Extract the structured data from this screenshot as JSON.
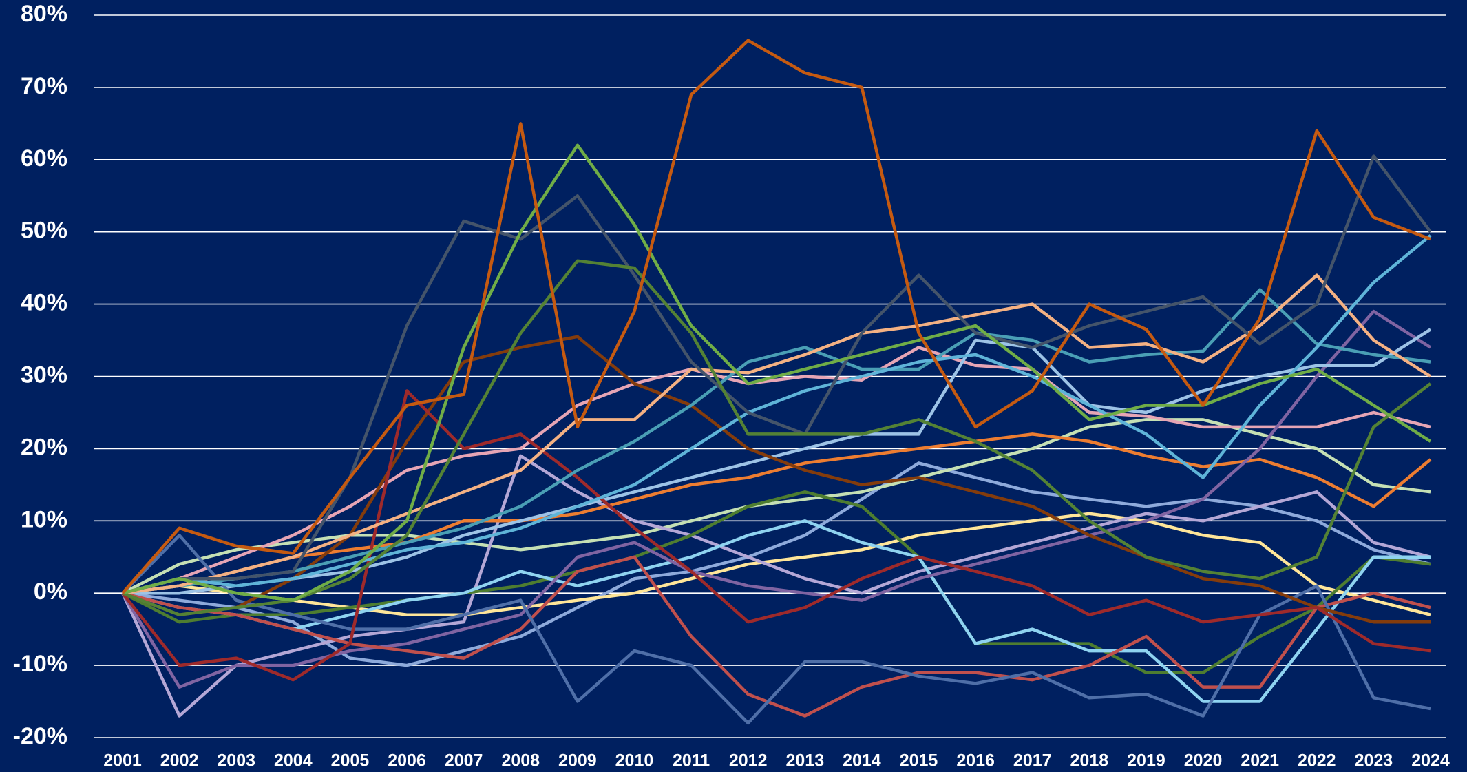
{
  "chart_data": {
    "type": "line",
    "categories": [
      "2001",
      "2002",
      "2003",
      "2004",
      "2005",
      "2006",
      "2007",
      "2008",
      "2009",
      "2010",
      "2011",
      "2012",
      "2013",
      "2014",
      "2015",
      "2016",
      "2017",
      "2018",
      "2019",
      "2020",
      "2021",
      "2022",
      "2023",
      "2024"
    ],
    "ylim": [
      -20,
      80
    ],
    "yticks": [
      {
        "value": -20,
        "label": "-20%"
      },
      {
        "value": -10,
        "label": "-10%"
      },
      {
        "value": 0,
        "label": "0%"
      },
      {
        "value": 10,
        "label": "10%"
      },
      {
        "value": 20,
        "label": "20%"
      },
      {
        "value": 30,
        "label": "30%"
      },
      {
        "value": 40,
        "label": "40%"
      },
      {
        "value": 50,
        "label": "50%"
      },
      {
        "value": 60,
        "label": "60%"
      },
      {
        "value": 70,
        "label": "70%"
      },
      {
        "value": 80,
        "label": "80%"
      }
    ],
    "grid": true,
    "series": [
      {
        "color": "#8eaadb",
        "values": [
          0,
          -1,
          -2,
          -4,
          -9,
          -10,
          -8,
          -6,
          -2,
          2,
          3,
          5,
          8,
          13,
          18,
          16,
          14,
          13,
          12,
          13,
          12,
          10,
          6,
          4
        ]
      },
      {
        "color": "#ffe699",
        "values": [
          0,
          1,
          0,
          -1,
          -2,
          -3,
          -3,
          -2,
          -1,
          0,
          2,
          4,
          5,
          6,
          8,
          9,
          10,
          11,
          10,
          8,
          7,
          1,
          -1,
          -3
        ]
      },
      {
        "color": "#c5e0b4",
        "values": [
          0,
          4,
          6,
          7,
          8,
          8,
          7,
          6,
          7,
          8,
          10,
          12,
          13,
          14,
          16,
          18,
          20,
          23,
          24,
          24,
          22,
          20,
          15,
          14
        ]
      },
      {
        "color": "#b4a7d6",
        "values": [
          0,
          -17,
          -10,
          -8,
          -6,
          -5,
          -4,
          19,
          14,
          10,
          8,
          5,
          2,
          0,
          3,
          5,
          7,
          9,
          11,
          10,
          12,
          14,
          7,
          5
        ]
      },
      {
        "color": "#ed7d31",
        "values": [
          0,
          1,
          3,
          5,
          6,
          7,
          10,
          10,
          11,
          13,
          15,
          16,
          18,
          19,
          20,
          21,
          22,
          21,
          19,
          17.5,
          18.5,
          16,
          12,
          18.5
        ]
      },
      {
        "color": "#4e7d30",
        "values": [
          0,
          -4,
          -3,
          -3,
          -2,
          -1,
          0,
          1,
          3,
          5,
          8,
          12,
          14,
          12,
          5,
          -7,
          -7,
          -7,
          -11,
          -11,
          -6,
          -2,
          5,
          4
        ]
      },
      {
        "color": "#8fd3f0",
        "values": [
          0,
          -2,
          -3,
          -5,
          -3,
          -1,
          0,
          3,
          1,
          3,
          5,
          8,
          10,
          7,
          5,
          -7,
          -5,
          -8,
          -8,
          -15,
          -15,
          -5,
          5,
          5
        ]
      },
      {
        "color": "#e6a5b5",
        "values": [
          0,
          2,
          5,
          8,
          12,
          17,
          19,
          20,
          26,
          29,
          31,
          29,
          30,
          29.5,
          34,
          31.5,
          31,
          25,
          24.5,
          23,
          23,
          23,
          25,
          23
        ]
      },
      {
        "color": "#8064a2",
        "values": [
          0,
          -13,
          -10,
          -10,
          -8,
          -7,
          -5,
          -3,
          5,
          7,
          3,
          1,
          0,
          -1,
          2,
          4,
          6,
          8,
          10,
          13,
          20,
          30,
          39,
          34
        ]
      },
      {
        "color": "#9dc3e6",
        "values": [
          0,
          0,
          1,
          2,
          3,
          5,
          8,
          10,
          12,
          14,
          16,
          18,
          20,
          22,
          22,
          35,
          34,
          26,
          25,
          28,
          30,
          31.5,
          31.5,
          36.5
        ]
      },
      {
        "color": "#c0504d",
        "values": [
          0,
          -2,
          -3,
          -5,
          -7,
          -8,
          -9,
          -5,
          3,
          5,
          -6,
          -14,
          -17,
          -13,
          -11,
          -11,
          -12,
          -10,
          -6,
          -13,
          -13,
          -2,
          0,
          -2
        ]
      },
      {
        "color": "#4f6fa8",
        "values": [
          0,
          8,
          -1,
          -3,
          -5,
          -5,
          -3,
          -1,
          -15,
          -8,
          -10,
          -18,
          -9.5,
          -9.5,
          -11.5,
          -12.5,
          -11,
          -14.5,
          -14,
          -17,
          -3,
          1,
          -14.5,
          -16
        ]
      },
      {
        "color": "#843c0c",
        "values": [
          0,
          -3,
          -2,
          2,
          8,
          21,
          32,
          34,
          35.5,
          29,
          26,
          20,
          17,
          15,
          16,
          14,
          12,
          8,
          5,
          2,
          1,
          -2,
          -4,
          -4
        ]
      },
      {
        "color": "#9e2a2b",
        "values": [
          0,
          -10,
          -9,
          -12,
          -7,
          28,
          20,
          22,
          16,
          9,
          3,
          -4,
          -2,
          2,
          5,
          3,
          1,
          -3,
          -1,
          -4,
          -3,
          -2,
          -7,
          -8
        ]
      },
      {
        "color": "#4a9fb5",
        "values": [
          0,
          1,
          2,
          3,
          5,
          7,
          9,
          12,
          17,
          21,
          26,
          32,
          34,
          31,
          31,
          36,
          35,
          32,
          33,
          33.5,
          42,
          34.5,
          33,
          32
        ]
      },
      {
        "color": "#f4b183",
        "values": [
          0,
          1,
          3,
          5,
          8,
          11,
          14,
          17,
          24,
          24,
          31,
          30.5,
          33,
          36,
          37,
          38.5,
          40,
          34,
          34.5,
          32,
          37,
          44,
          35,
          30
        ]
      },
      {
        "color": "#5fb4d8",
        "values": [
          0,
          2,
          1,
          2,
          4,
          6,
          7,
          9,
          12,
          15,
          20,
          25,
          28,
          30,
          32,
          33,
          30,
          26,
          22,
          16,
          26,
          34,
          43,
          49.5
        ]
      },
      {
        "color": "#44546a",
        "values": [
          0,
          2,
          2,
          3,
          16,
          37,
          51.5,
          49,
          55,
          44,
          32,
          25,
          22,
          36,
          44,
          36,
          34,
          37,
          39,
          41,
          34.5,
          40,
          60.5,
          50
        ]
      },
      {
        "color": "#548235",
        "values": [
          0,
          -3,
          -2,
          -1,
          2,
          8,
          22,
          36,
          46,
          45,
          36,
          22,
          22,
          22,
          24,
          21,
          17,
          10,
          5,
          3,
          2,
          5,
          23,
          29
        ]
      },
      {
        "color": "#70ad47",
        "values": [
          0,
          2,
          0,
          -1,
          3,
          10,
          34,
          50,
          62,
          51,
          37,
          29,
          31,
          33,
          35,
          37,
          31,
          24,
          26,
          26,
          29,
          31,
          26,
          21
        ]
      },
      {
        "color": "#c55a11",
        "values": [
          0,
          9,
          6.5,
          5.5,
          16,
          26,
          27.5,
          65,
          23,
          39,
          69,
          76.5,
          72,
          70,
          36,
          23,
          28,
          40,
          36.5,
          26,
          38,
          64,
          52,
          49
        ]
      }
    ]
  }
}
